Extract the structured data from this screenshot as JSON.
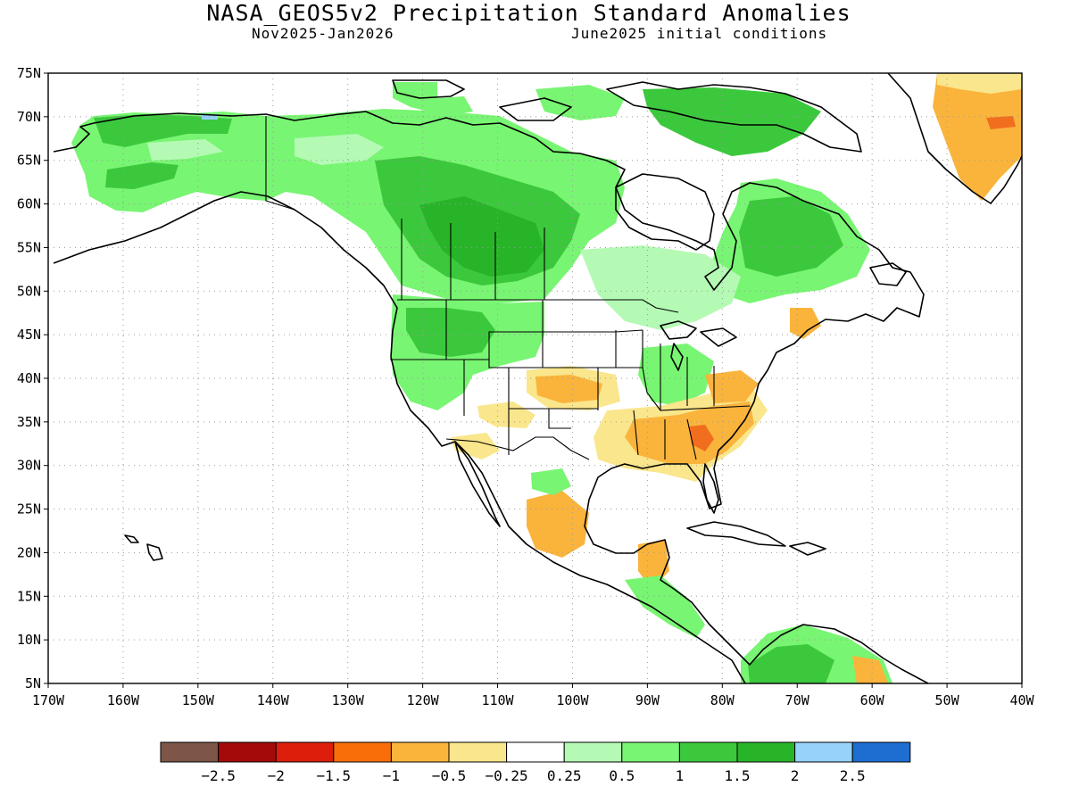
{
  "title": "NASA_GEOS5v2 Precipitation Standard Anomalies",
  "subtitle_left": "Nov2025-Jan2026",
  "subtitle_right": "June2025 initial conditions",
  "map": {
    "lat_range": [
      5,
      75
    ],
    "lon_range": [
      -170,
      -40
    ],
    "lat_ticks": [
      "75N",
      "70N",
      "65N",
      "60N",
      "55N",
      "50N",
      "45N",
      "40N",
      "35N",
      "30N",
      "25N",
      "20N",
      "15N",
      "10N",
      "5N"
    ],
    "lon_ticks": [
      "170W",
      "160W",
      "150W",
      "140W",
      "130W",
      "120W",
      "110W",
      "100W",
      "90W",
      "80W",
      "70W",
      "60W",
      "50W",
      "40W"
    ],
    "gridlines": true,
    "anomaly_regions": [
      {
        "name": "western-canada-wet",
        "category": "1 to 1.5",
        "color": "#78f572"
      },
      {
        "name": "alberta-core-wet",
        "category": "1.5 to 2",
        "color": "#2db42d"
      },
      {
        "name": "pacific-northwest-wet",
        "category": "1 to 1.5",
        "color": "#78f572"
      },
      {
        "name": "alaska-wet",
        "category": "0.5 to 1",
        "color": "#78f572"
      },
      {
        "name": "northern-quebec-wet",
        "category": "1 to 1.5",
        "color": "#3cc83c"
      },
      {
        "name": "southeast-us-dry",
        "category": "-1 to -0.5",
        "color": "#fab43c"
      },
      {
        "name": "georgia-core-dry",
        "category": "-1.5 to -1",
        "color": "#f06e1e"
      },
      {
        "name": "greenland-dry",
        "category": "-1 to -0.5",
        "color": "#fab43c"
      },
      {
        "name": "central-plains-dry",
        "category": "-0.5 to -0.25",
        "color": "#fae68c"
      },
      {
        "name": "mexico-dry",
        "category": "-0.5 to -0.25",
        "color": "#fab43c"
      },
      {
        "name": "colombia-venezuela-wet",
        "category": "1 to 1.5",
        "color": "#3cc83c"
      }
    ]
  },
  "colorbar": {
    "colors": [
      "#7d5648",
      "#a50a0a",
      "#dc1e0a",
      "#fa6e0a",
      "#fab43c",
      "#fae68c",
      "#ffffff",
      "#b4fab4",
      "#78f572",
      "#3cc83c",
      "#28b428",
      "#96d2fa",
      "#1e6ed2"
    ],
    "labels": [
      "-2.5",
      "-2",
      "-1.5",
      "-1",
      "-0.5",
      "-0.25",
      "0.25",
      "0.5",
      "1",
      "1.5",
      "2",
      "2.5"
    ]
  }
}
